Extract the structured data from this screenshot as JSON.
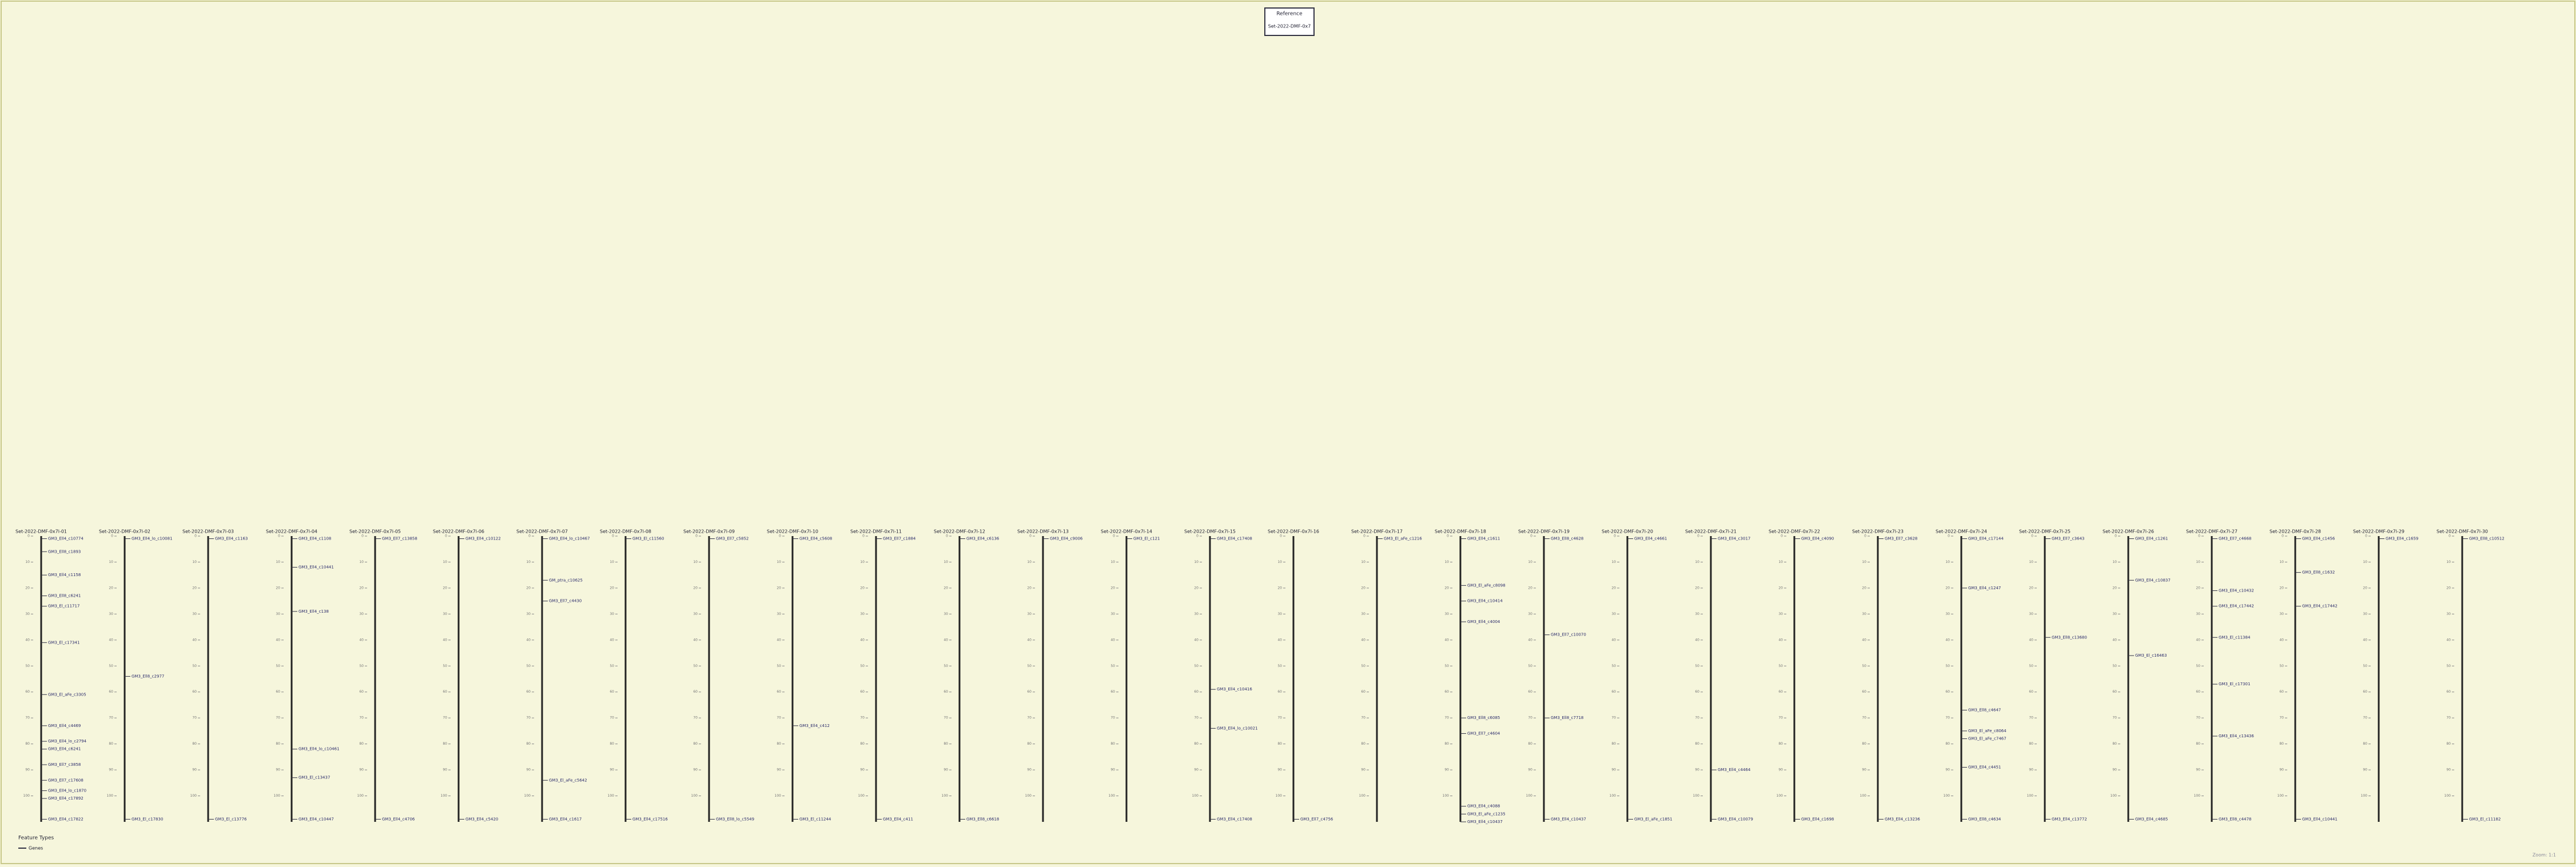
{
  "header": {
    "title": "Reference",
    "subtitle": "Set-2022-DMF-0x7"
  },
  "scale_ticks": [
    0,
    10,
    20,
    30,
    40,
    50,
    60,
    70,
    80,
    90,
    100
  ],
  "tracks": [
    {
      "name": "Set-2022-DMF-0x7l-01",
      "markers": [
        {
          "label": "GM3_Ell4_c10774",
          "position": 1
        },
        {
          "label": "GM3_Ell8_c1893",
          "position": 6
        },
        {
          "label": "GM3_Ell4_c1158",
          "position": 15
        },
        {
          "label": "GM3_Ell8_c6241",
          "position": 23
        },
        {
          "label": "GM3_El_c11717",
          "position": 27
        },
        {
          "label": "GM3_El_c17341",
          "position": 41
        },
        {
          "label": "GM3_El_aFe_c3305",
          "position": 61
        },
        {
          "label": "GM3_Ell4_c4469",
          "position": 73
        },
        {
          "label": "GM3_Ell4_lo_c2794",
          "position": 79
        },
        {
          "label": "GM3_Ell4_c6241",
          "position": 82
        },
        {
          "label": "GM3_Ell7_c3858",
          "position": 88
        },
        {
          "label": "GM3_Ell7_c17608",
          "position": 94
        },
        {
          "label": "GM3_Ell4_lo_c1870",
          "position": 98
        },
        {
          "label": "GM3_Ell4_c17892",
          "position": 101
        },
        {
          "label": "GM3_Ell4_c17822",
          "position": 109
        }
      ]
    },
    {
      "name": "Set-2022-DMF-0x7l-02",
      "markers": [
        {
          "label": "GM3_Ell4_lo_c10081",
          "position": 1
        },
        {
          "label": "GM3_Ell8_c2977",
          "position": 54
        },
        {
          "label": "GM3_El_c17830",
          "position": 109
        }
      ]
    },
    {
      "name": "Set-2022-DMF-0x7l-03",
      "markers": [
        {
          "label": "GM3_Ell4_c1163",
          "position": 1
        },
        {
          "label": "GM3_El_c13776",
          "position": 109
        }
      ]
    },
    {
      "name": "Set-2022-DMF-0x7l-04",
      "markers": [
        {
          "label": "GM3_Ell4_c1108",
          "position": 1
        },
        {
          "label": "GM3_Ell4_c10441",
          "position": 12
        },
        {
          "label": "GM3_Ell4_c138",
          "position": 29
        },
        {
          "label": "GM3_Ell4_lo_c10461",
          "position": 82
        },
        {
          "label": "GM3_El_c13437",
          "position": 93
        },
        {
          "label": "GM3_Ell4_c10447",
          "position": 109
        }
      ]
    },
    {
      "name": "Set-2022-DMF-0x7l-05",
      "markers": [
        {
          "label": "GM3_Ell7_c13858",
          "position": 1
        },
        {
          "label": "GM3_Ell4_c4706",
          "position": 109
        }
      ]
    },
    {
      "name": "Set-2022-DMF-0x7l-06",
      "markers": [
        {
          "label": "GM3_Ell4_c10122",
          "position": 1
        },
        {
          "label": "GM3_Ell4_c5420",
          "position": 109
        }
      ]
    },
    {
      "name": "Set-2022-DMF-0x7l-07",
      "markers": [
        {
          "label": "GM3_Ell4_lo_c10467",
          "position": 1
        },
        {
          "label": "GM_ptra_c10625",
          "position": 17
        },
        {
          "label": "GM3_Ell7_c4430",
          "position": 25
        },
        {
          "label": "GM3_El_aFe_c5642",
          "position": 94
        },
        {
          "label": "GM3_Ell4_c1617",
          "position": 109
        }
      ]
    },
    {
      "name": "Set-2022-DMF-0x7l-08",
      "markers": [
        {
          "label": "GM3_El_c11560",
          "position": 1
        },
        {
          "label": "GM3_Ell4_c17516",
          "position": 109
        }
      ]
    },
    {
      "name": "Set-2022-DMF-0x7l-09",
      "markers": [
        {
          "label": "GM3_Ell7_c5852",
          "position": 1
        },
        {
          "label": "GM3_Ell8_lo_c5549",
          "position": 109
        }
      ]
    },
    {
      "name": "Set-2022-DMF-0x7l-10",
      "markers": [
        {
          "label": "GM3_Ell4_c5608",
          "position": 1
        },
        {
          "label": "GM3_Ell4_c412",
          "position": 73
        },
        {
          "label": "GM3_El_c11244",
          "position": 109
        }
      ]
    },
    {
      "name": "Set-2022-DMF-0x7l-11",
      "markers": [
        {
          "label": "GM3_Ell7_c1884",
          "position": 1
        },
        {
          "label": "GM3_Ell4_c411",
          "position": 109
        }
      ]
    },
    {
      "name": "Set-2022-DMF-0x7l-12",
      "markers": [
        {
          "label": "GM3_Ell4_c6136",
          "position": 1
        },
        {
          "label": "GM3_Ell8_c6618",
          "position": 109
        }
      ]
    },
    {
      "name": "Set-2022-DMF-0x7l-13",
      "markers": [
        {
          "label": "GM3_Ell4_c9006",
          "position": 1
        }
      ]
    },
    {
      "name": "Set-2022-DMF-0x7l-14",
      "markers": [
        {
          "label": "GM3_El_c121",
          "position": 1
        }
      ]
    },
    {
      "name": "Set-2022-DMF-0x7l-15",
      "markers": [
        {
          "label": "GM3_Ell4_c17408",
          "position": 1
        },
        {
          "label": "GM3_Ell4_c10416",
          "position": 59
        },
        {
          "label": "GM3_Ell4_lo_c10021",
          "position": 74
        },
        {
          "label": "GM3_Ell4_c17408",
          "position": 109
        }
      ]
    },
    {
      "name": "Set-2022-DMF-0x7l-16",
      "markers": [
        {
          "label": "GM3_Ell7_c4756",
          "position": 109
        }
      ]
    },
    {
      "name": "Set-2022-DMF-0x7l-17",
      "markers": [
        {
          "label": "GM3_El_aFe_c1216",
          "position": 1
        }
      ]
    },
    {
      "name": "Set-2022-DMF-0x7l-18",
      "markers": [
        {
          "label": "GM3_Ell4_c1611",
          "position": 1
        },
        {
          "label": "GM3_El_aFe_c8098",
          "position": 19
        },
        {
          "label": "GM3_Ell4_c10414",
          "position": 25
        },
        {
          "label": "GM3_Ell4_c4004",
          "position": 33
        },
        {
          "label": "GM3_Ell8_c6085",
          "position": 70
        },
        {
          "label": "GM3_Ell7_c4604",
          "position": 76
        },
        {
          "label": "GM3_Ell4_c4088",
          "position": 104
        },
        {
          "label": "GM3_El_aFe_c1235",
          "position": 107
        },
        {
          "label": "GM3_Ell4_c10437",
          "position": 110
        }
      ]
    },
    {
      "name": "Set-2022-DMF-0x7l-19",
      "markers": [
        {
          "label": "GM3_Ell8_c4628",
          "position": 1
        },
        {
          "label": "GM3_Ell7_c10070",
          "position": 38
        },
        {
          "label": "GM3_Ell8_c7718",
          "position": 70
        },
        {
          "label": "GM3_Ell4_c10437",
          "position": 109
        }
      ]
    },
    {
      "name": "Set-2022-DMF-0x7l-20",
      "markers": [
        {
          "label": "GM3_Ell4_c4661",
          "position": 1
        },
        {
          "label": "GM3_El_aFe_c1851",
          "position": 109
        }
      ]
    },
    {
      "name": "Set-2022-DMF-0x7l-21",
      "markers": [
        {
          "label": "GM3_Ell4_c3017",
          "position": 1
        },
        {
          "label": "GM3_Ell4_c4464",
          "position": 90
        },
        {
          "label": "GM3_Ell4_c10079",
          "position": 109
        }
      ]
    },
    {
      "name": "Set-2022-DMF-0x7l-22",
      "markers": [
        {
          "label": "GM3_Ell4_c4090",
          "position": 1
        },
        {
          "label": "GM3_Ell4_c1698",
          "position": 109
        }
      ]
    },
    {
      "name": "Set-2022-DMF-0x7l-23",
      "markers": [
        {
          "label": "GM3_Ell7_c3628",
          "position": 1
        },
        {
          "label": "GM3_Ell4_c13236",
          "position": 109
        }
      ]
    },
    {
      "name": "Set-2022-DMF-0x7l-24",
      "markers": [
        {
          "label": "GM3_Ell4_c17144",
          "position": 1
        },
        {
          "label": "GM3_Ell4_c1247",
          "position": 20
        },
        {
          "label": "GM3_Ell8_c4647",
          "position": 67
        },
        {
          "label": "GM3_El_aFe_c8064",
          "position": 75
        },
        {
          "label": "GM3_El_aFe_c7467",
          "position": 78
        },
        {
          "label": "GM3_Ell4_c4451",
          "position": 89
        },
        {
          "label": "GM3_Ell8_c4634",
          "position": 109
        }
      ]
    },
    {
      "name": "Set-2022-DMF-0x7l-25",
      "markers": [
        {
          "label": "GM3_Ell7_c3643",
          "position": 1
        },
        {
          "label": "GM3_Ell8_c13680",
          "position": 39
        },
        {
          "label": "GM3_Ell4_c13772",
          "position": 109
        }
      ]
    },
    {
      "name": "Set-2022-DMF-0x7l-26",
      "markers": [
        {
          "label": "GM3_Ell4_c1261",
          "position": 1
        },
        {
          "label": "GM3_Ell4_c10837",
          "position": 17
        },
        {
          "label": "GM3_El_c16463",
          "position": 46
        },
        {
          "label": "GM3_Ell4_c4685",
          "position": 109
        }
      ]
    },
    {
      "name": "Set-2022-DMF-0x7l-27",
      "markers": [
        {
          "label": "GM3_Ell7_c4668",
          "position": 1
        },
        {
          "label": "GM3_Ell4_c10432",
          "position": 21
        },
        {
          "label": "GM3_Ell4_c17442",
          "position": 27
        },
        {
          "label": "GM3_El_c11384",
          "position": 39
        },
        {
          "label": "GM3_El_c17301",
          "position": 57
        },
        {
          "label": "GM3_Ell4_c13436",
          "position": 77
        },
        {
          "label": "GM3_Ell8_c4478",
          "position": 109
        }
      ]
    },
    {
      "name": "Set-2022-DMF-0x7l-28",
      "markers": [
        {
          "label": "GM3_Ell4_c1456",
          "position": 1
        },
        {
          "label": "GM3_Ell8_c1632",
          "position": 14
        },
        {
          "label": "GM3_Ell4_c17442",
          "position": 27
        },
        {
          "label": "GM3_Ell4_c10441",
          "position": 109
        }
      ]
    },
    {
      "name": "Set-2022-DMF-0x7l-29",
      "markers": [
        {
          "label": "GM3_Ell4_c1659",
          "position": 1
        }
      ]
    },
    {
      "name": "Set-2022-DMF-0x7l-30",
      "markers": [
        {
          "label": "GM3_Ell8_c10512",
          "position": 1
        },
        {
          "label": "GM3_El_c11182",
          "position": 109
        }
      ]
    }
  ],
  "legend": {
    "title": "Feature Types",
    "items": [
      "Genes"
    ]
  },
  "footer": {
    "zoom": "Zoom: 1:1"
  }
}
